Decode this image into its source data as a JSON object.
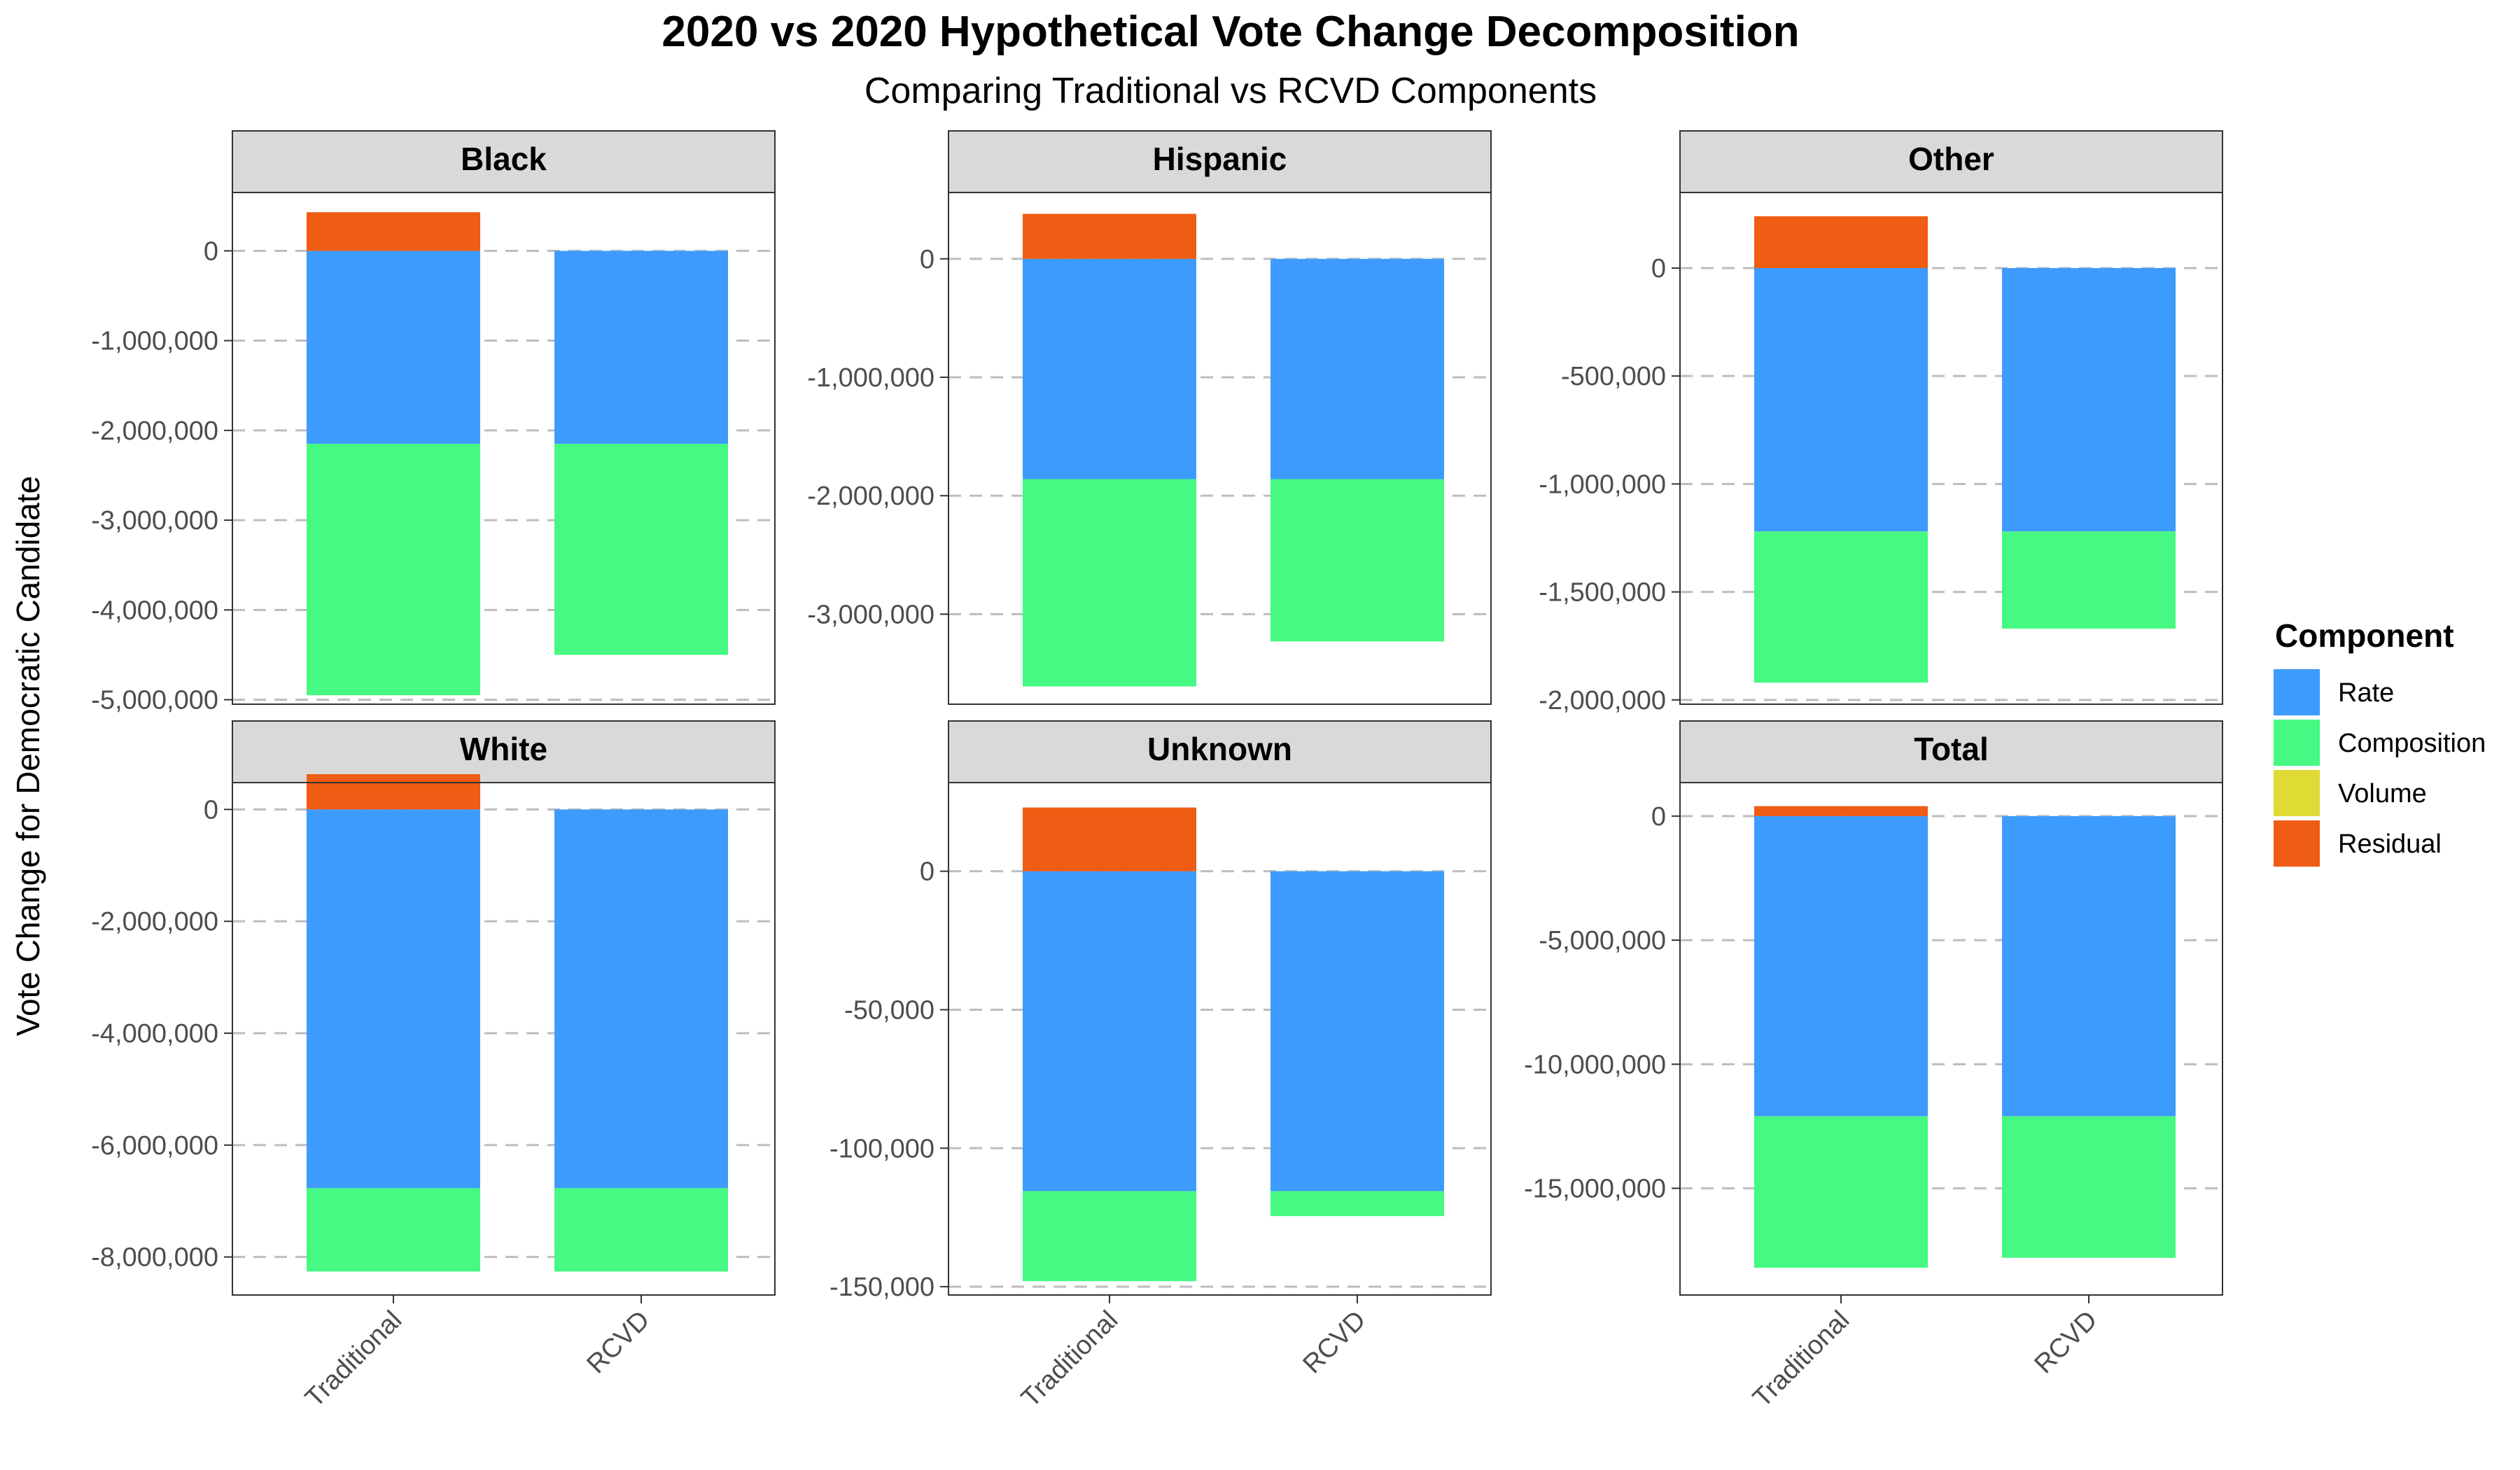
{
  "chart_data": {
    "type": "bar",
    "stacked": true,
    "title": "2020 vs 2020 Hypothetical Vote Change Decomposition",
    "subtitle": "Comparing Traditional vs RCVD Components",
    "ylabel": "Vote Change for Democratic Candidate",
    "categories": [
      "Traditional",
      "RCVD"
    ],
    "legend": {
      "title": "Component",
      "position": "right",
      "items": [
        {
          "name": "Rate",
          "color": "#3d9bfd"
        },
        {
          "name": "Composition",
          "color": "#45f982"
        },
        {
          "name": "Volume",
          "color": "#e0da35"
        },
        {
          "name": "Residual",
          "color": "#ef5c13"
        }
      ]
    },
    "grid": "horizontal dashed",
    "facets": [
      {
        "name": "Black",
        "ylim": [
          -5050000,
          650000
        ],
        "yticks": [
          0,
          -1000000,
          -2000000,
          -3000000,
          -4000000,
          -5000000
        ],
        "ytick_labels": [
          "0",
          "-1,000,000",
          "-2,000,000",
          "-3,000,000",
          "-4,000,000",
          "-5,000,000"
        ],
        "series": [
          {
            "name": "Rate",
            "values": [
              -2150000,
              -2150000
            ]
          },
          {
            "name": "Composition",
            "values": [
              -2800000,
              -2350000
            ]
          },
          {
            "name": "Volume",
            "values": [
              0,
              0
            ]
          },
          {
            "name": "Residual",
            "values": [
              430000,
              0
            ]
          }
        ]
      },
      {
        "name": "Hispanic",
        "ylim": [
          -3760000,
          560000
        ],
        "yticks": [
          0,
          -1000000,
          -2000000,
          -3000000
        ],
        "ytick_labels": [
          "0",
          "-1,000,000",
          "-2,000,000",
          "-3,000,000"
        ],
        "series": [
          {
            "name": "Rate",
            "values": [
              -1860000,
              -1860000
            ]
          },
          {
            "name": "Composition",
            "values": [
              -1750000,
              -1370000
            ]
          },
          {
            "name": "Volume",
            "values": [
              0,
              0
            ]
          },
          {
            "name": "Residual",
            "values": [
              380000,
              0
            ]
          }
        ]
      },
      {
        "name": "Other",
        "ylim": [
          -2020000,
          350000
        ],
        "yticks": [
          0,
          -500000,
          -1000000,
          -1500000,
          -2000000
        ],
        "ytick_labels": [
          "0",
          "-500,000",
          "-1,000,000",
          "-1,500,000",
          "-2,000,000"
        ],
        "series": [
          {
            "name": "Rate",
            "values": [
              -1220000,
              -1220000
            ]
          },
          {
            "name": "Composition",
            "values": [
              -700000,
              -450000
            ]
          },
          {
            "name": "Volume",
            "values": [
              0,
              0
            ]
          },
          {
            "name": "Residual",
            "values": [
              240000,
              0
            ]
          }
        ]
      },
      {
        "name": "White",
        "ylim": [
          -8680000,
          480000
        ],
        "yticks": [
          0,
          -2000000,
          -4000000,
          -6000000,
          -8000000
        ],
        "ytick_labels": [
          "0",
          "-2,000,000",
          "-4,000,000",
          "-6,000,000",
          "-8,000,000"
        ],
        "series": [
          {
            "name": "Rate",
            "values": [
              -6770000,
              -6770000
            ]
          },
          {
            "name": "Composition",
            "values": [
              -1490000,
              -1490000
            ]
          },
          {
            "name": "Volume",
            "values": [
              0,
              0
            ]
          },
          {
            "name": "Residual",
            "values": [
              630000,
              0
            ]
          }
        ]
      },
      {
        "name": "Unknown",
        "ylim": [
          -153000,
          32000
        ],
        "yticks": [
          0,
          -50000,
          -100000,
          -150000
        ],
        "ytick_labels": [
          "0",
          "-50,000",
          "-100,000",
          "-150,000"
        ],
        "series": [
          {
            "name": "Rate",
            "values": [
              -115500,
              -115500
            ]
          },
          {
            "name": "Composition",
            "values": [
              -32500,
              -9000
            ]
          },
          {
            "name": "Volume",
            "values": [
              0,
              0
            ]
          },
          {
            "name": "Residual",
            "values": [
              23000,
              0
            ]
          }
        ]
      },
      {
        "name": "Total",
        "ylim": [
          -19300000,
          1350000
        ],
        "yticks": [
          0,
          -5000000,
          -10000000,
          -15000000
        ],
        "ytick_labels": [
          "0",
          "-5,000,000",
          "-10,000,000",
          "-15,000,000"
        ],
        "series": [
          {
            "name": "Rate",
            "values": [
              -12100000,
              -12100000
            ]
          },
          {
            "name": "Composition",
            "values": [
              -6100000,
              -5700000
            ]
          },
          {
            "name": "Volume",
            "values": [
              0,
              0
            ]
          },
          {
            "name": "Residual",
            "values": [
              400000,
              0
            ]
          }
        ]
      }
    ]
  }
}
